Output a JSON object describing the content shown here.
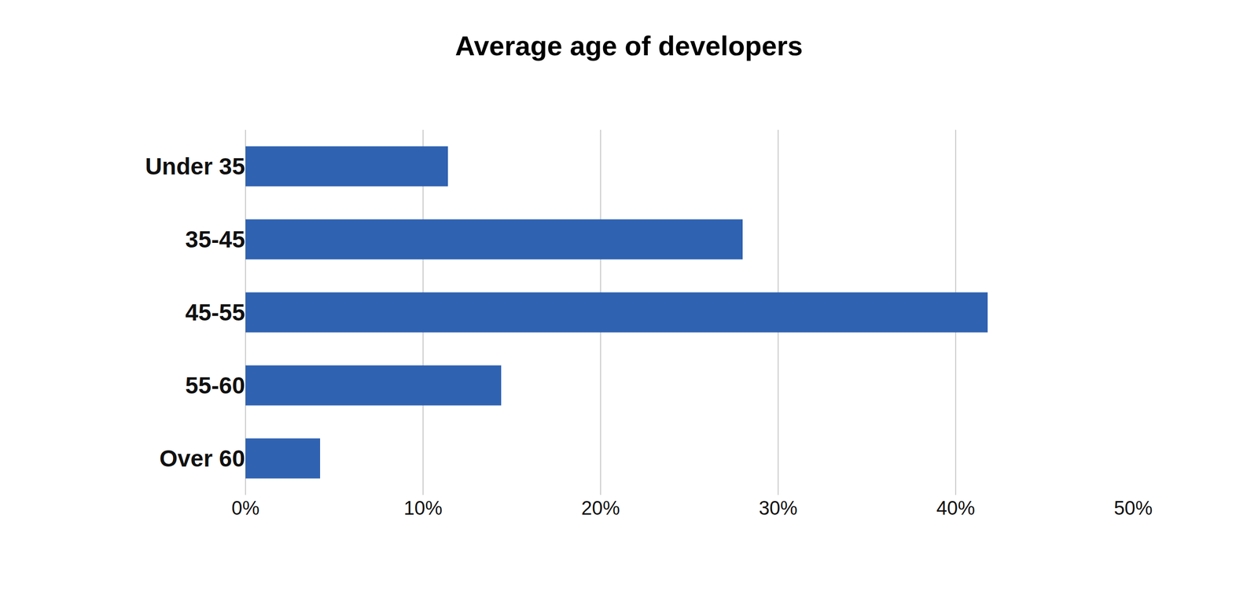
{
  "chart_data": {
    "type": "bar",
    "title": "Average age of developers",
    "orientation": "horizontal",
    "categories": [
      "Under 35",
      "35-45",
      "45-55",
      "55-60",
      "Over 60"
    ],
    "values": [
      11.4,
      28.0,
      41.8,
      14.4,
      4.2
    ],
    "color": "#2f62b1",
    "xlim": [
      0,
      50
    ],
    "xticks": [
      {
        "value": 0,
        "label": "0%"
      },
      {
        "value": 10,
        "label": "10%"
      },
      {
        "value": 20,
        "label": "20%"
      },
      {
        "value": 30,
        "label": "30%"
      },
      {
        "value": 40,
        "label": "40%"
      },
      {
        "value": 50,
        "label": "50%"
      }
    ],
    "grid": true
  }
}
